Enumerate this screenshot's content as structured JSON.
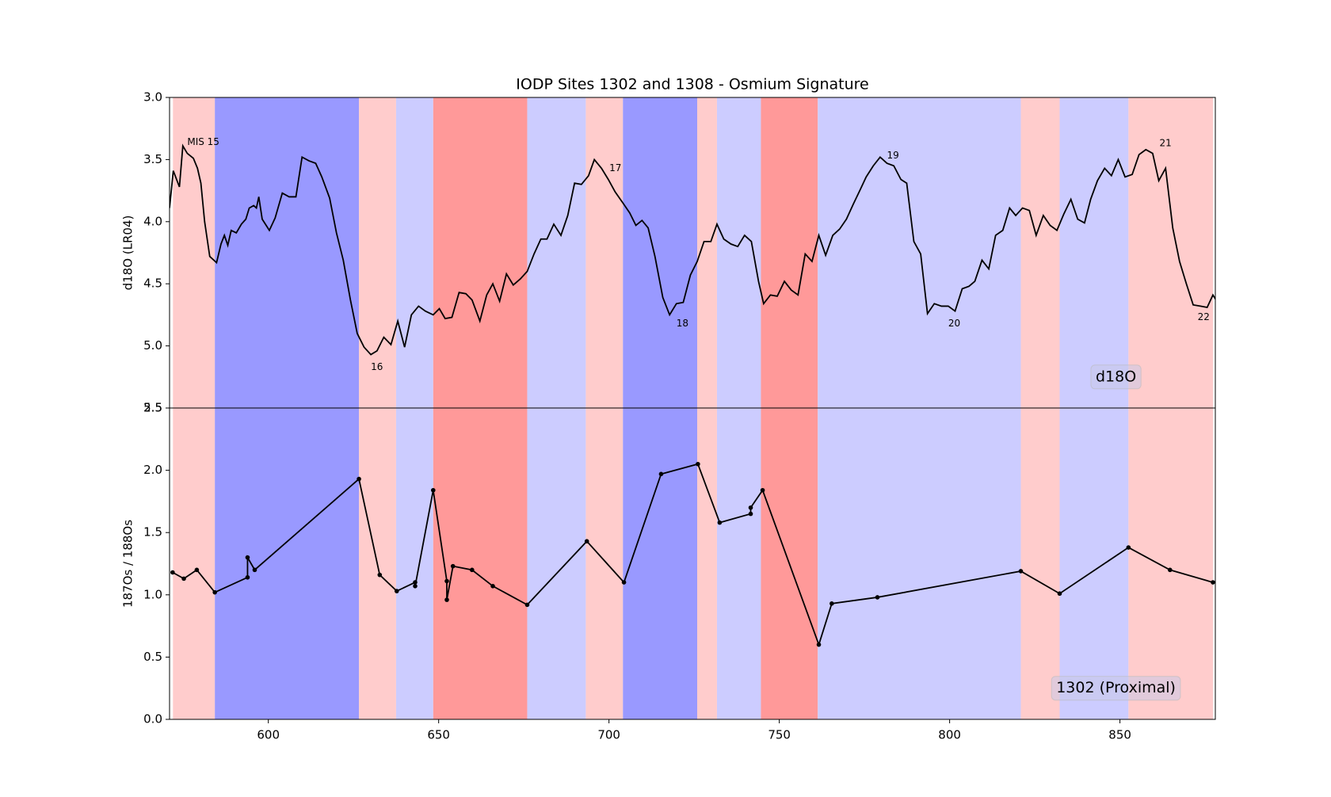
{
  "chart_data": [
    {
      "type": "line",
      "title": "IODP Sites 1302 and 1308 - Osmium Signature",
      "ylabel": "d18O (LR04)",
      "label": "d18O",
      "xlim": [
        571,
        878
      ],
      "ylim": [
        5.5,
        3.0
      ],
      "yticks": [
        {
          "value": 3.0,
          "label": "3.0"
        },
        3.5,
        {
          "value": 4.0,
          "label": "4.0"
        },
        4.5,
        {
          "value": 5.0,
          "label": "5.0"
        },
        5.5
      ],
      "bands": [
        {
          "start": 572,
          "end": 584.3,
          "color": "#ffcccc"
        },
        {
          "start": 584.3,
          "end": 626.6,
          "color": "#9999ff"
        },
        {
          "start": 626.6,
          "end": 637.5,
          "color": "#ffcccc"
        },
        {
          "start": 637.5,
          "end": 648.4,
          "color": "#ccccff"
        },
        {
          "start": 648.4,
          "end": 676.0,
          "color": "#ff9999"
        },
        {
          "start": 676.0,
          "end": 693.2,
          "color": "#ccccff"
        },
        {
          "start": 693.2,
          "end": 704.1,
          "color": "#ffcccc"
        },
        {
          "start": 704.1,
          "end": 725.9,
          "color": "#9999ff"
        },
        {
          "start": 725.9,
          "end": 731.7,
          "color": "#ffcccc"
        },
        {
          "start": 731.7,
          "end": 744.6,
          "color": "#ccccff"
        },
        {
          "start": 744.6,
          "end": 761.3,
          "color": "#ff9999"
        },
        {
          "start": 761.3,
          "end": 820.9,
          "color": "#ccccff"
        },
        {
          "start": 820.9,
          "end": 832.3,
          "color": "#ffcccc"
        },
        {
          "start": 832.3,
          "end": 852.5,
          "color": "#ccccff"
        },
        {
          "start": 852.5,
          "end": 877.3,
          "color": "#ffcccc"
        }
      ],
      "annotations": [
        {
          "text": "MIS 15",
          "x": 576.2,
          "y": 3.36
        },
        {
          "text": "16",
          "x": 630.1,
          "y": 5.17
        },
        {
          "text": "17",
          "x": 700.1,
          "y": 3.57
        },
        {
          "text": "18",
          "x": 719.8,
          "y": 4.82
        },
        {
          "text": "19",
          "x": 781.6,
          "y": 3.47
        },
        {
          "text": "20",
          "x": 799.6,
          "y": 4.82
        },
        {
          "text": "21",
          "x": 861.6,
          "y": 3.37
        },
        {
          "text": "22",
          "x": 872.8,
          "y": 4.77
        }
      ],
      "color": "#000000",
      "marker": false,
      "x": [
        571.0,
        572.1,
        573.9,
        574.9,
        576.2,
        578.0,
        579.2,
        580.2,
        581.3,
        582.8,
        584.8,
        586.1,
        587.1,
        588.1,
        589.1,
        590.6,
        592.1,
        593.4,
        594.4,
        595.7,
        596.5,
        597.2,
        598.2,
        600.3,
        602.0,
        604.1,
        606.1,
        608.1,
        609.9,
        611.9,
        613.9,
        615.7,
        618.0,
        620.0,
        622.0,
        624.1,
        626.1,
        628.1,
        630.1,
        631.9,
        633.9,
        636.0,
        638.0,
        640.0,
        642.0,
        644.1,
        646.1,
        648.4,
        650.2,
        651.9,
        653.9,
        656.0,
        658.0,
        659.8,
        662.1,
        664.1,
        665.9,
        667.9,
        669.9,
        671.9,
        674.0,
        676.0,
        678.0,
        680.0,
        681.8,
        683.8,
        685.9,
        687.9,
        689.9,
        691.9,
        694.0,
        695.7,
        697.8,
        699.8,
        701.8,
        704.1,
        706.1,
        707.9,
        709.7,
        711.5,
        713.5,
        715.8,
        717.8,
        719.8,
        721.8,
        723.9,
        725.9,
        727.9,
        729.9,
        731.7,
        733.7,
        735.8,
        737.8,
        739.8,
        741.8,
        743.9,
        745.4,
        747.4,
        749.4,
        751.5,
        753.5,
        755.5,
        757.6,
        759.6,
        761.6,
        763.6,
        765.7,
        767.7,
        769.7,
        771.7,
        773.8,
        775.5,
        777.6,
        779.6,
        781.6,
        783.6,
        785.7,
        787.4,
        789.5,
        791.5,
        793.5,
        795.5,
        797.6,
        799.6,
        801.6,
        803.7,
        805.7,
        807.4,
        809.5,
        811.5,
        813.5,
        815.6,
        817.6,
        819.4,
        821.4,
        823.4,
        825.4,
        827.5,
        829.5,
        831.5,
        833.5,
        835.6,
        837.6,
        839.6,
        841.4,
        843.4,
        845.5,
        847.5,
        849.5,
        851.5,
        853.6,
        855.6,
        857.6,
        859.6,
        861.4,
        863.4,
        865.5,
        867.5,
        869.5,
        871.5,
        873.6,
        875.6,
        877.3,
        878.6
      ],
      "values": [
        3.89,
        3.59,
        3.72,
        3.39,
        3.45,
        3.49,
        3.57,
        3.69,
        4.0,
        4.28,
        4.33,
        4.18,
        4.11,
        4.19,
        4.07,
        4.09,
        4.02,
        3.98,
        3.89,
        3.87,
        3.89,
        3.8,
        3.98,
        4.07,
        3.97,
        3.77,
        3.8,
        3.8,
        3.48,
        3.51,
        3.53,
        3.64,
        3.81,
        4.09,
        4.31,
        4.63,
        4.9,
        5.01,
        5.07,
        5.04,
        4.93,
        4.99,
        4.8,
        5.01,
        4.75,
        4.68,
        4.72,
        4.75,
        4.7,
        4.78,
        4.77,
        4.57,
        4.58,
        4.63,
        4.8,
        4.59,
        4.5,
        4.64,
        4.42,
        4.51,
        4.46,
        4.4,
        4.26,
        4.14,
        4.14,
        4.02,
        4.11,
        3.95,
        3.69,
        3.7,
        3.63,
        3.5,
        3.57,
        3.66,
        3.76,
        3.85,
        3.93,
        4.03,
        3.99,
        4.05,
        4.28,
        4.61,
        4.75,
        4.66,
        4.65,
        4.43,
        4.32,
        4.16,
        4.16,
        4.02,
        4.14,
        4.18,
        4.2,
        4.11,
        4.16,
        4.48,
        4.66,
        4.59,
        4.6,
        4.48,
        4.55,
        4.59,
        4.26,
        4.32,
        4.11,
        4.27,
        4.11,
        4.06,
        3.98,
        3.86,
        3.74,
        3.64,
        3.55,
        3.48,
        3.53,
        3.55,
        3.66,
        3.69,
        4.16,
        4.26,
        4.74,
        4.66,
        4.68,
        4.68,
        4.72,
        4.54,
        4.52,
        4.48,
        4.31,
        4.38,
        4.11,
        4.07,
        3.89,
        3.95,
        3.89,
        3.91,
        4.11,
        3.95,
        4.03,
        4.07,
        3.94,
        3.82,
        3.98,
        4.01,
        3.82,
        3.67,
        3.57,
        3.63,
        3.5,
        3.64,
        3.62,
        3.46,
        3.42,
        3.45,
        3.67,
        3.57,
        4.05,
        4.32,
        4.5,
        4.67,
        4.68,
        4.69,
        4.59,
        4.65
      ]
    },
    {
      "type": "line",
      "ylabel": "187Os / 188Os",
      "label": "1302 (Proximal)",
      "xlim": [
        571,
        878
      ],
      "ylim": [
        0.0,
        2.5
      ],
      "xticks": [
        600,
        650,
        700,
        750,
        800,
        850
      ],
      "yticks": [
        {
          "value": 0.0,
          "label": "0.0"
        },
        0.5,
        {
          "value": 1.0,
          "label": "1.0"
        },
        1.5,
        {
          "value": 2.0,
          "label": "2.0"
        },
        2.5
      ],
      "bands": [
        {
          "start": 572,
          "end": 584.3,
          "color": "#ffcccc"
        },
        {
          "start": 584.3,
          "end": 626.6,
          "color": "#9999ff"
        },
        {
          "start": 626.6,
          "end": 637.5,
          "color": "#ffcccc"
        },
        {
          "start": 637.5,
          "end": 648.4,
          "color": "#ccccff"
        },
        {
          "start": 648.4,
          "end": 676.0,
          "color": "#ff9999"
        },
        {
          "start": 676.0,
          "end": 693.2,
          "color": "#ccccff"
        },
        {
          "start": 693.2,
          "end": 704.1,
          "color": "#ffcccc"
        },
        {
          "start": 704.1,
          "end": 725.9,
          "color": "#9999ff"
        },
        {
          "start": 725.9,
          "end": 731.7,
          "color": "#ffcccc"
        },
        {
          "start": 731.7,
          "end": 744.6,
          "color": "#ccccff"
        },
        {
          "start": 744.6,
          "end": 761.3,
          "color": "#ff9999"
        },
        {
          "start": 761.3,
          "end": 820.9,
          "color": "#ccccff"
        },
        {
          "start": 820.9,
          "end": 832.3,
          "color": "#ffcccc"
        },
        {
          "start": 832.3,
          "end": 852.5,
          "color": "#ccccff"
        },
        {
          "start": 852.5,
          "end": 877.3,
          "color": "#ffcccc"
        }
      ],
      "color": "#000000",
      "marker": true,
      "x": [
        571.9,
        575.2,
        579.0,
        584.3,
        593.9,
        593.9,
        596.0,
        626.6,
        632.7,
        637.7,
        643.1,
        643.1,
        648.4,
        652.4,
        652.4,
        654.2,
        659.8,
        665.9,
        676.0,
        693.5,
        704.4,
        715.3,
        726.1,
        732.5,
        741.6,
        741.6,
        745.1,
        761.6,
        765.4,
        778.8,
        820.9,
        832.3,
        852.5,
        864.7,
        877.3
      ],
      "values": [
        1.18,
        1.13,
        1.2,
        1.02,
        1.14,
        1.3,
        1.2,
        1.93,
        1.16,
        1.03,
        1.1,
        1.07,
        1.84,
        1.11,
        0.96,
        1.23,
        1.2,
        1.07,
        0.92,
        1.43,
        1.1,
        1.97,
        2.05,
        1.58,
        1.65,
        1.7,
        1.84,
        0.6,
        0.93,
        0.98,
        1.19,
        1.01,
        1.38,
        1.2,
        1.1
      ]
    }
  ]
}
